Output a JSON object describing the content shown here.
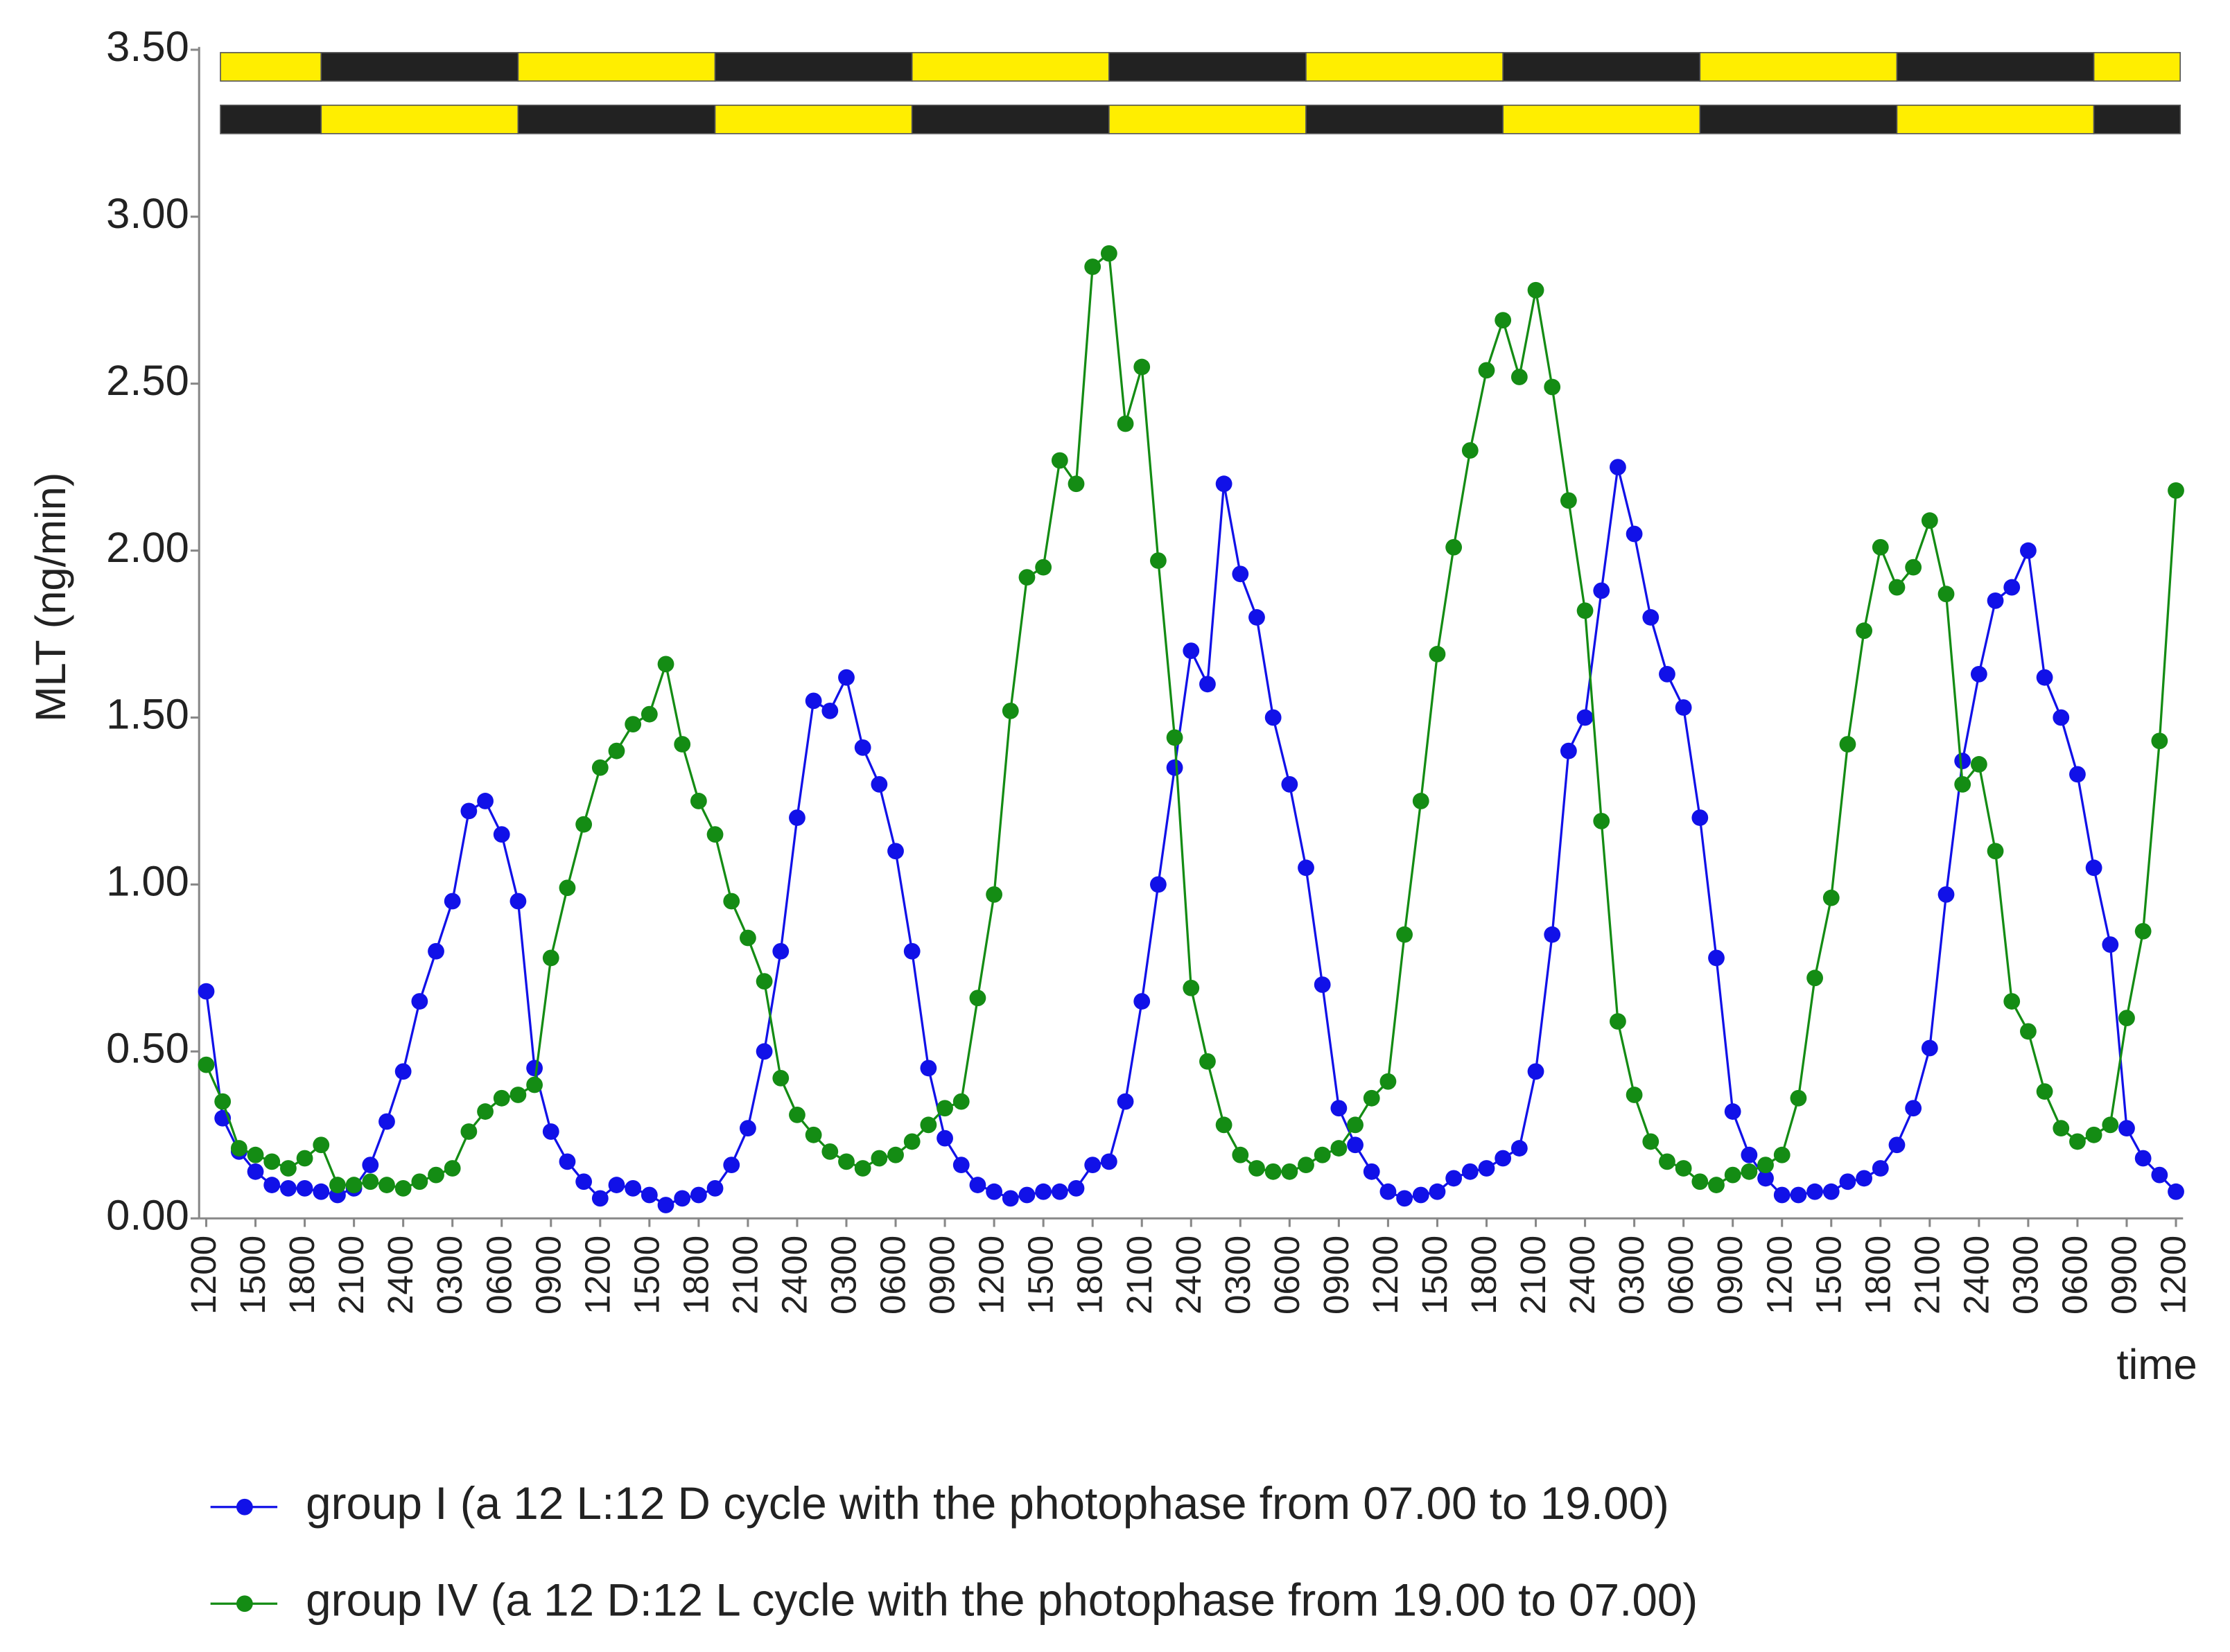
{
  "chart_data": {
    "type": "line",
    "y_label": "MLT (ng/min)",
    "x_label": "time",
    "x": [
      0,
      1,
      2,
      3,
      4,
      5,
      6,
      7,
      8,
      9,
      10,
      11,
      12,
      13,
      14,
      15,
      16,
      17,
      18,
      19,
      20,
      21,
      22,
      23,
      24,
      25,
      26,
      27,
      28,
      29,
      30,
      31,
      32,
      33,
      34,
      35,
      36,
      37,
      38,
      39,
      40,
      41,
      42,
      43,
      44,
      45,
      46,
      47,
      48,
      49,
      50,
      51,
      52,
      53,
      54,
      55,
      56,
      57,
      58,
      59,
      60,
      61,
      62,
      63,
      64,
      65,
      66,
      67,
      68,
      69,
      70,
      71,
      72,
      73,
      74,
      75,
      76,
      77,
      78,
      79,
      80,
      81,
      82,
      83,
      84,
      85,
      86,
      87,
      88,
      89,
      90,
      91,
      92,
      93,
      94,
      95,
      96,
      97,
      98,
      99,
      100,
      101,
      102,
      103,
      104,
      105,
      106,
      107,
      108,
      109,
      110,
      111,
      112,
      113,
      114,
      115,
      116,
      117,
      118,
      119,
      120
    ],
    "series": [
      {
        "name": "group I (a 12 L:12 D cycle with the photophase from 07.00 to 19.00)",
        "color": "#1111e8",
        "values": [
          0.68,
          0.3,
          0.2,
          0.14,
          0.1,
          0.09,
          0.09,
          0.08,
          0.07,
          0.09,
          0.16,
          0.29,
          0.44,
          0.65,
          0.8,
          0.95,
          1.22,
          1.25,
          1.15,
          0.95,
          0.45,
          0.26,
          0.17,
          0.11,
          0.06,
          0.1,
          0.09,
          0.07,
          0.04,
          0.06,
          0.07,
          0.09,
          0.16,
          0.27,
          0.5,
          0.8,
          1.2,
          1.55,
          1.52,
          1.62,
          1.41,
          1.3,
          1.1,
          0.8,
          0.45,
          0.24,
          0.16,
          0.1,
          0.08,
          0.06,
          0.07,
          0.08,
          0.08,
          0.09,
          0.16,
          0.17,
          0.35,
          0.65,
          1.0,
          1.35,
          1.7,
          1.6,
          2.2,
          1.93,
          1.8,
          1.5,
          1.3,
          1.05,
          0.7,
          0.33,
          0.22,
          0.14,
          0.08,
          0.06,
          0.07,
          0.08,
          0.12,
          0.14,
          0.15,
          0.18,
          0.21,
          0.44,
          0.85,
          1.4,
          1.5,
          1.88,
          2.25,
          2.05,
          1.8,
          1.63,
          1.53,
          1.2,
          0.78,
          0.32,
          0.19,
          0.12,
          0.07,
          0.07,
          0.08,
          0.08,
          0.11,
          0.12,
          0.15,
          0.22,
          0.33,
          0.51,
          0.97,
          1.37,
          1.63,
          1.85,
          1.89,
          2.0,
          1.62,
          1.5,
          1.33,
          1.05,
          0.82,
          0.27,
          0.18,
          0.13,
          0.08
        ]
      },
      {
        "name": "group IV (a 12 D:12 L cycle with the photophase from 19.00 to 07.00)",
        "color": "#148c14",
        "values": [
          0.46,
          0.35,
          0.21,
          0.19,
          0.17,
          0.15,
          0.18,
          0.22,
          0.1,
          0.1,
          0.11,
          0.1,
          0.09,
          0.11,
          0.13,
          0.15,
          0.26,
          0.32,
          0.36,
          0.37,
          0.4,
          0.78,
          0.99,
          1.18,
          1.35,
          1.4,
          1.48,
          1.51,
          1.66,
          1.42,
          1.25,
          1.15,
          0.95,
          0.84,
          0.71,
          0.42,
          0.31,
          0.25,
          0.2,
          0.17,
          0.15,
          0.18,
          0.19,
          0.23,
          0.28,
          0.33,
          0.35,
          0.66,
          0.97,
          1.52,
          1.92,
          1.95,
          2.27,
          2.2,
          2.85,
          2.89,
          2.38,
          2.55,
          1.97,
          1.44,
          0.69,
          0.47,
          0.28,
          0.19,
          0.15,
          0.14,
          0.14,
          0.16,
          0.19,
          0.21,
          0.28,
          0.36,
          0.41,
          0.85,
          1.25,
          1.69,
          2.01,
          2.3,
          2.54,
          2.69,
          2.52,
          2.78,
          2.49,
          2.15,
          1.82,
          1.19,
          0.59,
          0.37,
          0.23,
          0.17,
          0.15,
          0.11,
          0.1,
          0.13,
          0.14,
          0.16,
          0.19,
          0.36,
          0.72,
          0.96,
          1.42,
          1.76,
          2.01,
          1.89,
          1.95,
          2.09,
          1.87,
          1.3,
          1.36,
          1.1,
          0.65,
          0.56,
          0.38,
          0.27,
          0.23,
          0.25,
          0.28,
          0.6,
          0.86,
          1.43,
          2.18
        ]
      }
    ],
    "xlim": [
      0,
      120
    ],
    "xticks": [
      {
        "value": 0,
        "label": "1200"
      },
      {
        "value": 3,
        "label": "1500"
      },
      {
        "value": 6,
        "label": "1800"
      },
      {
        "value": 9,
        "label": "2100"
      },
      {
        "value": 12,
        "label": "2400"
      },
      {
        "value": 15,
        "label": "0300"
      },
      {
        "value": 18,
        "label": "0600"
      },
      {
        "value": 21,
        "label": "0900"
      },
      {
        "value": 24,
        "label": "1200"
      },
      {
        "value": 27,
        "label": "1500"
      },
      {
        "value": 30,
        "label": "1800"
      },
      {
        "value": 33,
        "label": "2100"
      },
      {
        "value": 36,
        "label": "2400"
      },
      {
        "value": 39,
        "label": "0300"
      },
      {
        "value": 42,
        "label": "0600"
      },
      {
        "value": 45,
        "label": "0900"
      },
      {
        "value": 48,
        "label": "1200"
      },
      {
        "value": 51,
        "label": "1500"
      },
      {
        "value": 54,
        "label": "1800"
      },
      {
        "value": 57,
        "label": "2100"
      },
      {
        "value": 60,
        "label": "2400"
      },
      {
        "value": 63,
        "label": "0300"
      },
      {
        "value": 66,
        "label": "0600"
      },
      {
        "value": 69,
        "label": "0900"
      },
      {
        "value": 72,
        "label": "1200"
      },
      {
        "value": 75,
        "label": "1500"
      },
      {
        "value": 78,
        "label": "1800"
      },
      {
        "value": 81,
        "label": "2100"
      },
      {
        "value": 84,
        "label": "2400"
      },
      {
        "value": 87,
        "label": "0300"
      },
      {
        "value": 90,
        "label": "0600"
      },
      {
        "value": 93,
        "label": "0900"
      },
      {
        "value": 96,
        "label": "1200"
      },
      {
        "value": 99,
        "label": "1500"
      },
      {
        "value": 102,
        "label": "1800"
      },
      {
        "value": 105,
        "label": "2100"
      },
      {
        "value": 108,
        "label": "2400"
      },
      {
        "value": 111,
        "label": "0300"
      },
      {
        "value": 114,
        "label": "0600"
      },
      {
        "value": 117,
        "label": "0900"
      },
      {
        "value": 120,
        "label": "1200"
      }
    ],
    "ylim": [
      0,
      3.5
    ],
    "yticks": [
      {
        "value": 0,
        "label": "0.00"
      },
      {
        "value": 0.5,
        "label": "0.50"
      },
      {
        "value": 1,
        "label": "1.00"
      },
      {
        "value": 1.5,
        "label": "1.50"
      },
      {
        "value": 2,
        "label": "2.00"
      },
      {
        "value": 2.5,
        "label": "2.50"
      },
      {
        "value": 3,
        "label": "3.00"
      },
      {
        "value": 3.5,
        "label": "3.50"
      }
    ],
    "grid": false,
    "legend": "bottom",
    "light_bars": [
      [
        {
          "start": 0,
          "end": 7,
          "color": "#ffee00"
        },
        {
          "start": 7,
          "end": 19,
          "color": "#222222"
        },
        {
          "start": 19,
          "end": 31,
          "color": "#ffee00"
        },
        {
          "start": 31,
          "end": 43,
          "color": "#222222"
        },
        {
          "start": 43,
          "end": 55,
          "color": "#ffee00"
        },
        {
          "start": 55,
          "end": 67,
          "color": "#222222"
        },
        {
          "start": 67,
          "end": 79,
          "color": "#ffee00"
        },
        {
          "start": 79,
          "end": 91,
          "color": "#222222"
        },
        {
          "start": 91,
          "end": 103,
          "color": "#ffee00"
        },
        {
          "start": 103,
          "end": 115,
          "color": "#222222"
        },
        {
          "start": 115,
          "end": 120,
          "color": "#ffee00"
        }
      ],
      [
        {
          "start": 0,
          "end": 7,
          "color": "#222222"
        },
        {
          "start": 7,
          "end": 19,
          "color": "#ffee00"
        },
        {
          "start": 19,
          "end": 31,
          "color": "#222222"
        },
        {
          "start": 31,
          "end": 43,
          "color": "#ffee00"
        },
        {
          "start": 43,
          "end": 55,
          "color": "#222222"
        },
        {
          "start": 55,
          "end": 67,
          "color": "#ffee00"
        },
        {
          "start": 67,
          "end": 79,
          "color": "#222222"
        },
        {
          "start": 79,
          "end": 91,
          "color": "#ffee00"
        },
        {
          "start": 91,
          "end": 103,
          "color": "#222222"
        },
        {
          "start": 103,
          "end": 115,
          "color": "#ffee00"
        },
        {
          "start": 115,
          "end": 120,
          "color": "#222222"
        }
      ]
    ]
  }
}
